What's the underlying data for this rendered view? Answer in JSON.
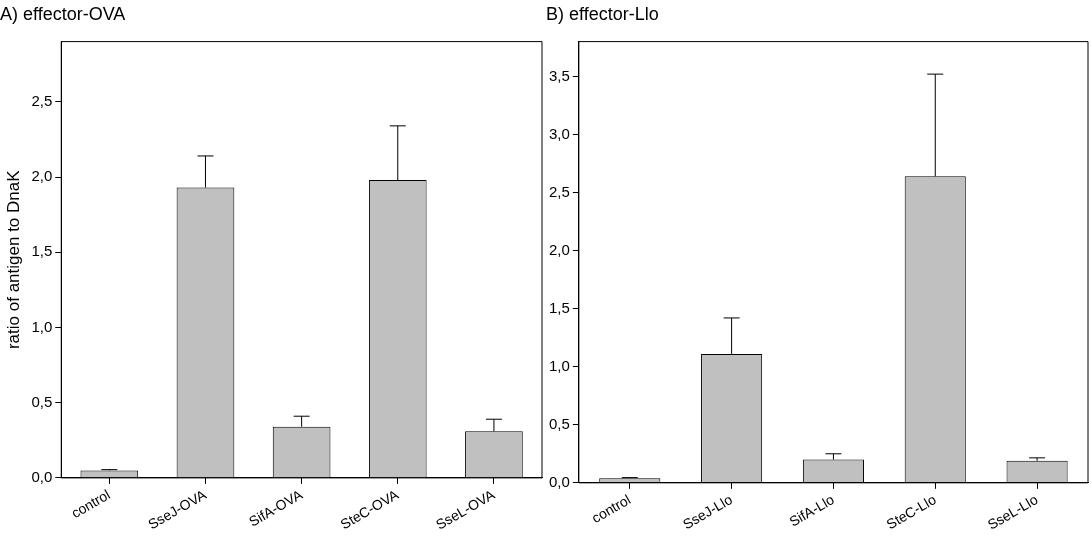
{
  "chart_data": [
    {
      "type": "bar",
      "title": "A) effector-OVA",
      "ylabel": "ratio of antigen to DnaK",
      "categories": [
        "control",
        "SseJ-OVA",
        "SifA-OVA",
        "SteC-OVA",
        "SseL-OVA"
      ],
      "values": [
        0.05,
        1.93,
        0.34,
        1.98,
        0.31
      ],
      "color": "#c0c0c0",
      "errors": [
        [
          0.05,
          0.055
        ],
        [
          1.93,
          2.14
        ],
        [
          0.34,
          0.41
        ],
        [
          1.98,
          2.34
        ],
        [
          0.31,
          0.39
        ]
      ],
      "ylim": [
        0,
        2.9
      ],
      "yticks": [
        {
          "value": 0,
          "label": "0,0"
        },
        {
          "value": 0.5,
          "label": "0,5"
        },
        {
          "value": 1,
          "label": "1,0"
        },
        {
          "value": 1.5,
          "label": "1,5"
        },
        {
          "value": 2,
          "label": "2,0"
        },
        {
          "value": 2.5,
          "label": "2,5"
        }
      ]
    },
    {
      "type": "bar",
      "title": "B) effector-Llo",
      "categories": [
        "control",
        "SseJ-Llo",
        "SifA-Llo",
        "SteC-Llo",
        "SseL-Llo"
      ],
      "values": [
        0.04,
        1.11,
        0.2,
        2.64,
        0.19
      ],
      "color": "#c0c0c0",
      "errors": [
        [
          0.04,
          0.045
        ],
        [
          1.11,
          1.42
        ],
        [
          0.2,
          0.25
        ],
        [
          2.64,
          3.52
        ],
        [
          0.19,
          0.215
        ]
      ],
      "ylim": [
        0,
        3.8
      ],
      "yticks": [
        {
          "value": 0,
          "label": "0,0"
        },
        {
          "value": 0.5,
          "label": "0,5"
        },
        {
          "value": 1,
          "label": "1,0"
        },
        {
          "value": 1.5,
          "label": "1,5"
        },
        {
          "value": 2,
          "label": "2,0"
        },
        {
          "value": 2.5,
          "label": "2,5"
        },
        {
          "value": 3,
          "label": "3,0"
        },
        {
          "value": 3.5,
          "label": "3,5"
        }
      ]
    }
  ]
}
